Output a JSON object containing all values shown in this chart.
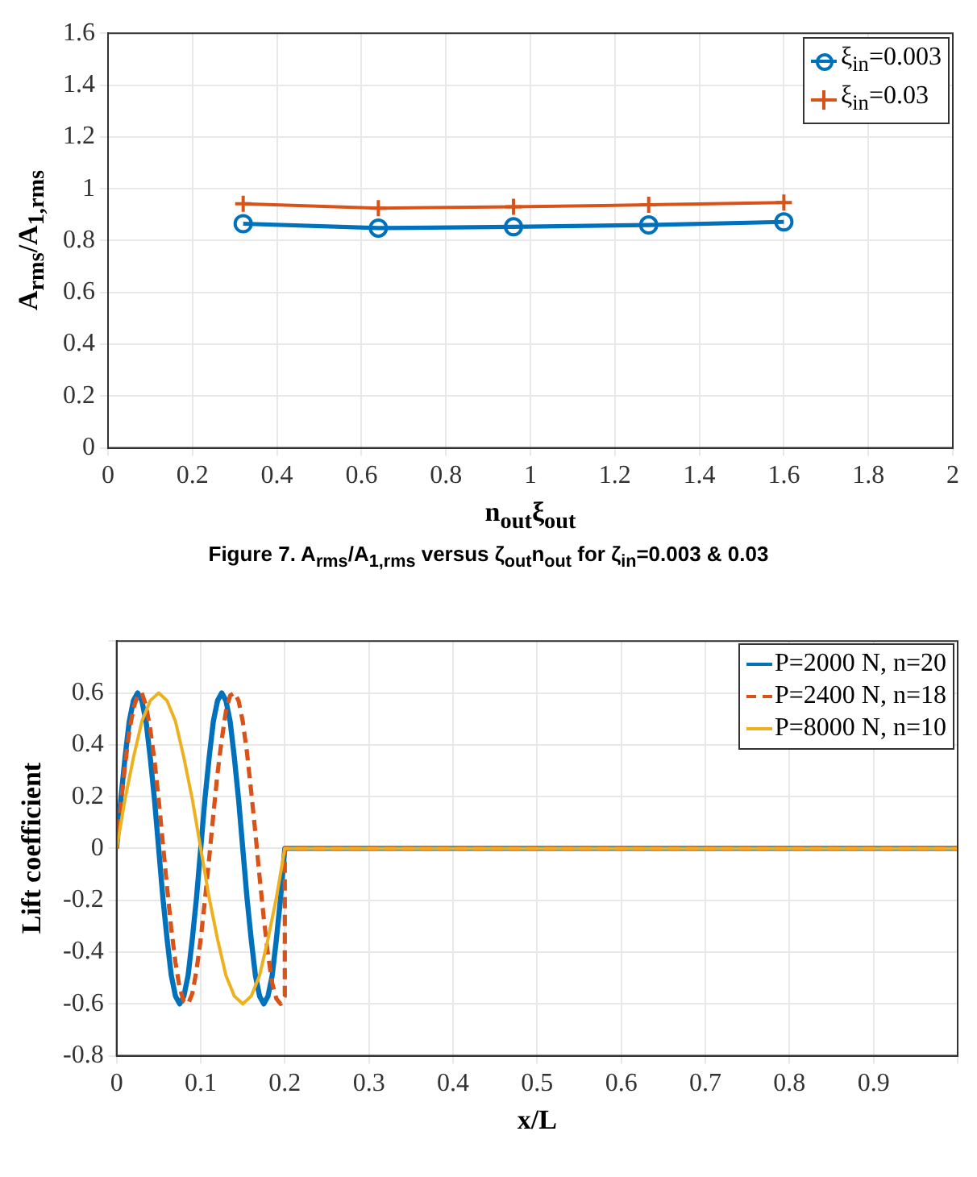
{
  "chart_data": [
    {
      "type": "line",
      "xlabel": "n$_{out}$ξ$_{out}$",
      "ylabel": "A$_{rms}$/A$_{1,rms}$",
      "x": [
        0.32,
        0.64,
        0.96,
        1.28,
        1.6
      ],
      "series": [
        {
          "name": "ξ$_{in}$=0.003",
          "color": "#0072bd",
          "marker": "circle",
          "values": [
            0.865,
            0.848,
            0.853,
            0.86,
            0.872
          ]
        },
        {
          "name": "ξ$_{in}$=0.03",
          "color": "#d95319",
          "marker": "cross",
          "values": [
            0.942,
            0.925,
            0.93,
            0.938,
            0.947
          ]
        }
      ],
      "xlim": [
        0,
        2
      ],
      "xticks": [
        0,
        0.2,
        0.4,
        0.6,
        0.8,
        1,
        1.2,
        1.4,
        1.6,
        1.8,
        2
      ],
      "ylim": [
        0,
        1.6
      ],
      "yticks": [
        0,
        0.2,
        0.4,
        0.6,
        0.8,
        1,
        1.2,
        1.4,
        1.6
      ],
      "grid": true,
      "legend": "top right",
      "annotations": [
        "Figure 7. A$_{rms}$/A$_{1,rms}$ versus ζ$_{out}$n$_{out}$ for ζ$_{in}$=0.003 & 0.03"
      ]
    },
    {
      "type": "line",
      "xlabel": "x/L",
      "ylabel": "Lift coefficient",
      "marker": "none",
      "series": [
        {
          "name": "P=2000 N, n=20",
          "color": "#0072bd",
          "line_style": "solid",
          "x": [
            0,
            0.005,
            0.01,
            0.015,
            0.02,
            0.025,
            0.03,
            0.035,
            0.04,
            0.045,
            0.05,
            0.055,
            0.06,
            0.065,
            0.07,
            0.075,
            0.08,
            0.085,
            0.09,
            0.095,
            0.1,
            0.105,
            0.11,
            0.115,
            0.12,
            0.125,
            0.13,
            0.135,
            0.14,
            0.145,
            0.15,
            0.155,
            0.16,
            0.165,
            0.17,
            0.175,
            0.18,
            0.185,
            0.19,
            0.195,
            0.2,
            1
          ],
          "values": [
            0,
            0.19,
            0.35,
            0.49,
            0.57,
            0.6,
            0.57,
            0.49,
            0.35,
            0.19,
            0,
            -0.19,
            -0.35,
            -0.49,
            -0.57,
            -0.6,
            -0.57,
            -0.49,
            -0.35,
            -0.19,
            0,
            0.19,
            0.35,
            0.49,
            0.57,
            0.6,
            0.57,
            0.49,
            0.35,
            0.19,
            0,
            -0.19,
            -0.35,
            -0.49,
            -0.57,
            -0.6,
            -0.57,
            -0.49,
            -0.35,
            -0.19,
            0,
            0
          ]
        },
        {
          "name": "P=2400 N, n=18",
          "color": "#d95319",
          "line_style": "dashed",
          "x": [
            0,
            0.005,
            0.01,
            0.015,
            0.02,
            0.025,
            0.03,
            0.035,
            0.04,
            0.045,
            0.05,
            0.055,
            0.06,
            0.065,
            0.07,
            0.075,
            0.08,
            0.085,
            0.09,
            0.095,
            0.1,
            0.105,
            0.11,
            0.115,
            0.12,
            0.125,
            0.13,
            0.135,
            0.14,
            0.145,
            0.15,
            0.155,
            0.16,
            0.165,
            0.17,
            0.175,
            0.18,
            0.185,
            0.19,
            0.195,
            0.2,
            0.2,
            1
          ],
          "values": [
            0,
            0.17,
            0.32,
            0.45,
            0.54,
            0.59,
            0.6,
            0.55,
            0.46,
            0.34,
            0.19,
            0.02,
            -0.15,
            -0.31,
            -0.44,
            -0.54,
            -0.59,
            -0.6,
            -0.56,
            -0.47,
            -0.35,
            -0.2,
            -0.04,
            0.13,
            0.29,
            0.42,
            0.53,
            0.59,
            0.6,
            0.57,
            0.49,
            0.37,
            0.22,
            0.06,
            -0.11,
            -0.27,
            -0.41,
            -0.52,
            -0.58,
            -0.6,
            -0.57,
            0,
            0
          ]
        },
        {
          "name": "P=8000 N, n=10",
          "color": "#edb120",
          "line_style": "solid",
          "x": [
            0,
            0.01,
            0.02,
            0.03,
            0.04,
            0.05,
            0.06,
            0.07,
            0.08,
            0.09,
            0.1,
            0.11,
            0.12,
            0.13,
            0.14,
            0.15,
            0.16,
            0.17,
            0.18,
            0.19,
            0.2,
            1
          ],
          "values": [
            0,
            0.19,
            0.35,
            0.49,
            0.57,
            0.6,
            0.57,
            0.49,
            0.35,
            0.19,
            0,
            -0.19,
            -0.35,
            -0.49,
            -0.57,
            -0.6,
            -0.57,
            -0.49,
            -0.35,
            -0.19,
            0,
            0
          ]
        }
      ],
      "xlim": [
        0,
        1
      ],
      "xticks": [
        0,
        0.1,
        0.2,
        0.3,
        0.4,
        0.5,
        0.6,
        0.7,
        0.8,
        0.9,
        {
          "value": 1,
          "label": null
        }
      ],
      "ylim": [
        -0.8,
        0.8
      ],
      "yticks": [
        -0.8,
        -0.6,
        -0.4,
        -0.2,
        0,
        0.2,
        0.4,
        0.6,
        {
          "value": 0.8,
          "label": null
        }
      ],
      "grid": true,
      "legend": "top right"
    }
  ]
}
